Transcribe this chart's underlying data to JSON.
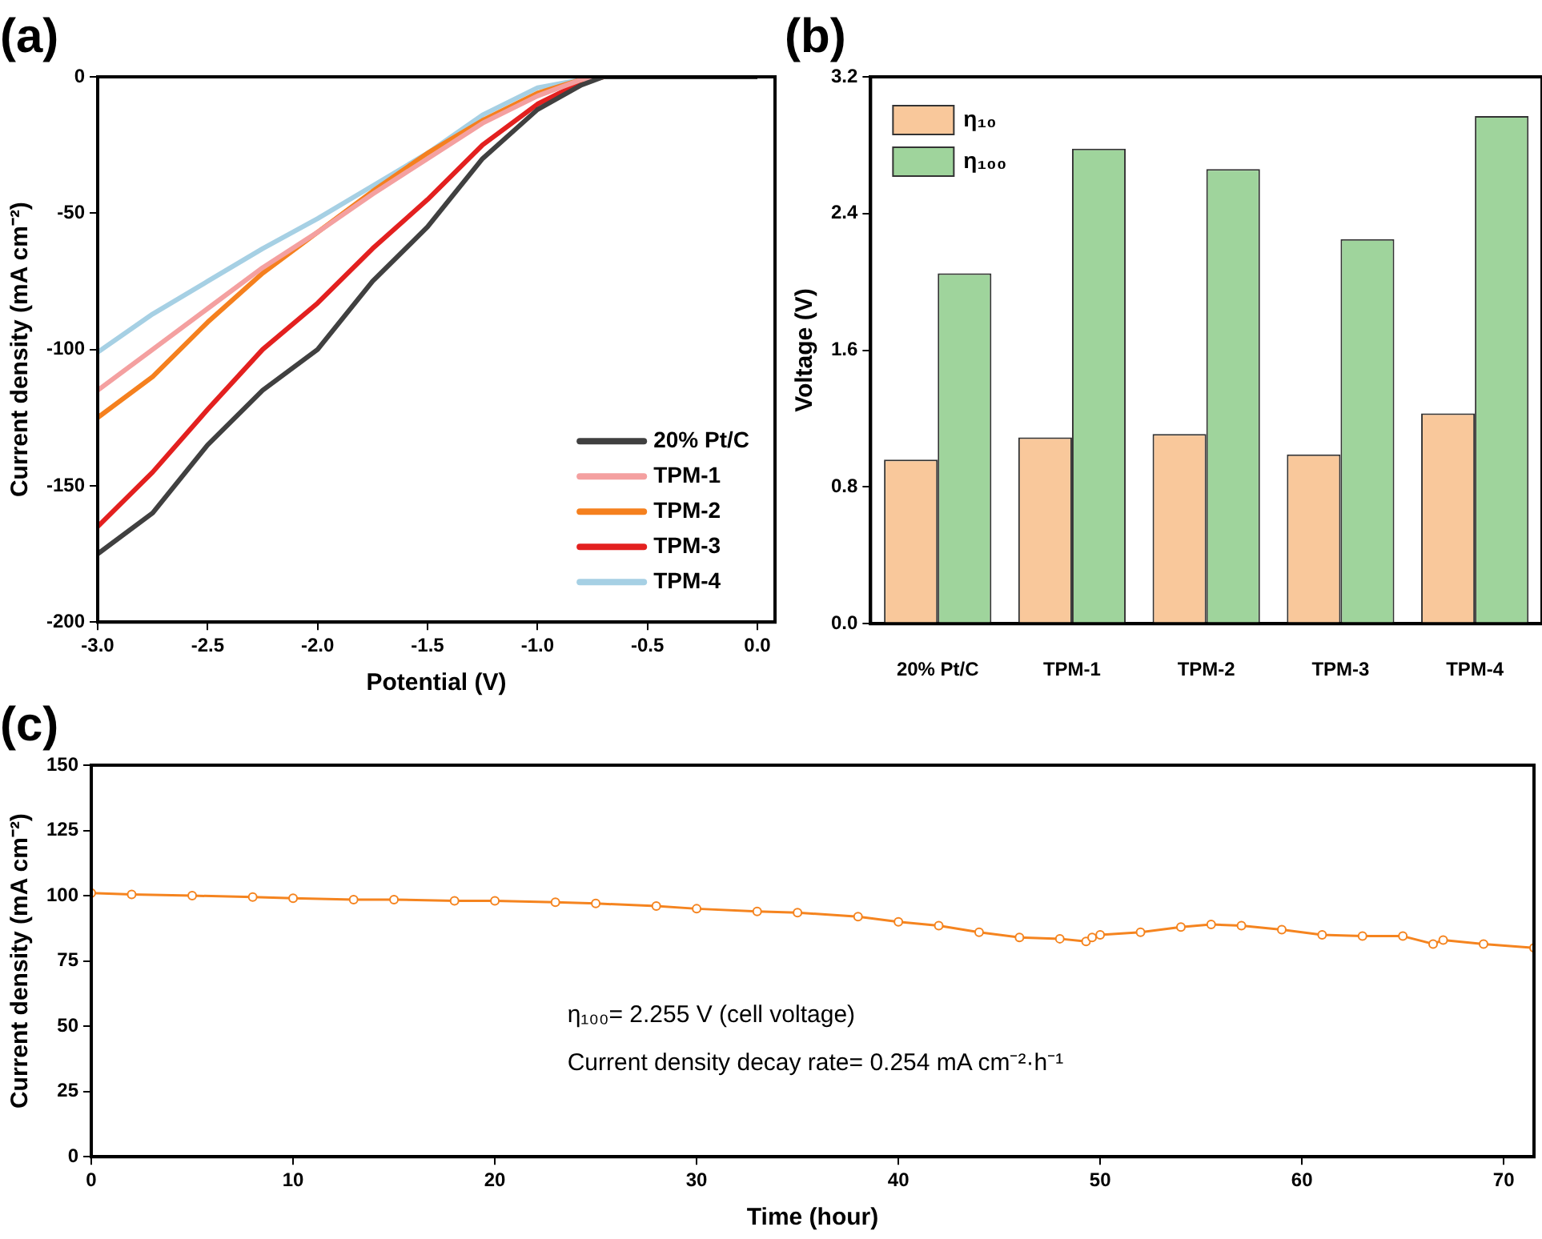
{
  "chart_data": [
    {
      "type": "line",
      "title": "(a)",
      "xlabel": "Potential (V)",
      "ylabel": "Current density (mA cm⁻²)",
      "xlim": [
        -3,
        0.08
      ],
      "xticks": [
        {
          "value": -3,
          "label": "-3.0"
        },
        {
          "value": -2.5,
          "label": "-2.5"
        },
        {
          "value": -2,
          "label": "-2.0"
        },
        {
          "value": -1.5,
          "label": "-1.5"
        },
        {
          "value": -1,
          "label": "-1.0"
        },
        {
          "value": -0.5,
          "label": "-0.5"
        },
        {
          "value": 0,
          "label": "0.0"
        }
      ],
      "ylim": [
        -200,
        0
      ],
      "yticks": [
        -200,
        -150,
        -100,
        -50,
        0
      ],
      "grid": false,
      "legend": "bottom right",
      "marker": "none",
      "line_style": "solid",
      "x": [
        -3,
        -2.75,
        -2.5,
        -2.25,
        -2,
        -1.75,
        -1.5,
        -1.25,
        -1,
        -0.8,
        -0.7,
        0
      ],
      "series": [
        {
          "name": "20% Pt/C",
          "color": "#404040",
          "values": [
            -175,
            -160,
            -135,
            -115,
            -100,
            -75,
            -55,
            -30,
            -12,
            -3,
            0,
            0
          ]
        },
        {
          "name": "TPM-1",
          "color": "#f4a0a0",
          "values": [
            -115,
            -100,
            -85,
            -70,
            -57,
            -43,
            -30,
            -17,
            -7,
            -1,
            0,
            0
          ]
        },
        {
          "name": "TPM-2",
          "color": "#f5801e",
          "values": [
            -125,
            -110,
            -90,
            -72,
            -57,
            -42,
            -28,
            -16,
            -6,
            -1,
            0,
            0
          ]
        },
        {
          "name": "TPM-3",
          "color": "#e3201f",
          "values": [
            -165,
            -145,
            -122,
            -100,
            -83,
            -63,
            -45,
            -25,
            -10,
            -2,
            0,
            0
          ]
        },
        {
          "name": "TPM-4",
          "color": "#a6d0e4",
          "values": [
            -101,
            -87,
            -75,
            -63,
            -52,
            -40,
            -28,
            -14,
            -4,
            -1,
            0,
            0
          ]
        }
      ]
    },
    {
      "type": "bar",
      "title": "(b)",
      "ylabel": "Voltage (V)",
      "categories": [
        "20% Pt/C",
        "TPM-1",
        "TPM-2",
        "TPM-3",
        "TPM-4"
      ],
      "ylim": [
        0,
        3.2
      ],
      "yticks": [
        {
          "value": 0,
          "label": "0.0"
        },
        {
          "value": 0.8,
          "label": "0.8"
        },
        {
          "value": 1.6,
          "label": "1.6"
        },
        {
          "value": 2.4,
          "label": "2.4"
        },
        {
          "value": 3.2,
          "label": "3.2"
        }
      ],
      "grid": false,
      "legend": "top left",
      "series": [
        {
          "name": "η₁₀",
          "color": "#f9c89b",
          "values": [
            0.96,
            1.09,
            1.11,
            0.99,
            1.23
          ]
        },
        {
          "name": "η₁₀₀",
          "color": "#9fd49c",
          "values": [
            2.05,
            2.78,
            2.66,
            2.25,
            2.97
          ]
        }
      ]
    },
    {
      "type": "line",
      "title": "(c)",
      "xlabel": "Time (hour)",
      "ylabel": "Current density (mA cm⁻²)",
      "xlim": [
        0,
        71.5
      ],
      "xticks": [
        0,
        10,
        20,
        30,
        40,
        50,
        60,
        70
      ],
      "ylim": [
        0,
        150
      ],
      "yticks": [
        0,
        25,
        50,
        75,
        100,
        125,
        150
      ],
      "grid": false,
      "marker": "circle",
      "line_style": "solid",
      "annotations": [
        "η₁₀₀= 2.255 V (cell voltage)",
        "Current density decay rate= 0.254 mA cm⁻²·h⁻¹"
      ],
      "x": [
        0,
        2,
        5,
        8,
        10,
        13,
        15,
        18,
        20,
        23,
        25,
        28,
        30,
        33,
        35,
        38,
        40,
        42,
        44,
        46,
        48,
        49.3,
        49.6,
        50,
        52,
        54,
        55.5,
        57,
        59,
        61,
        63,
        65,
        66.5,
        67,
        69,
        71.5
      ],
      "series": [
        {
          "color": "#f5841f",
          "values": [
            101,
            100.5,
            100,
            99.5,
            99,
            98.5,
            98.5,
            98,
            98,
            97.5,
            97,
            96,
            95,
            94,
            93.5,
            92,
            90,
            88.5,
            86,
            84,
            83.5,
            82.5,
            84,
            85,
            86,
            88,
            89,
            88.5,
            87,
            85,
            84.5,
            84.5,
            81.5,
            83,
            81.5,
            80
          ]
        }
      ]
    }
  ]
}
